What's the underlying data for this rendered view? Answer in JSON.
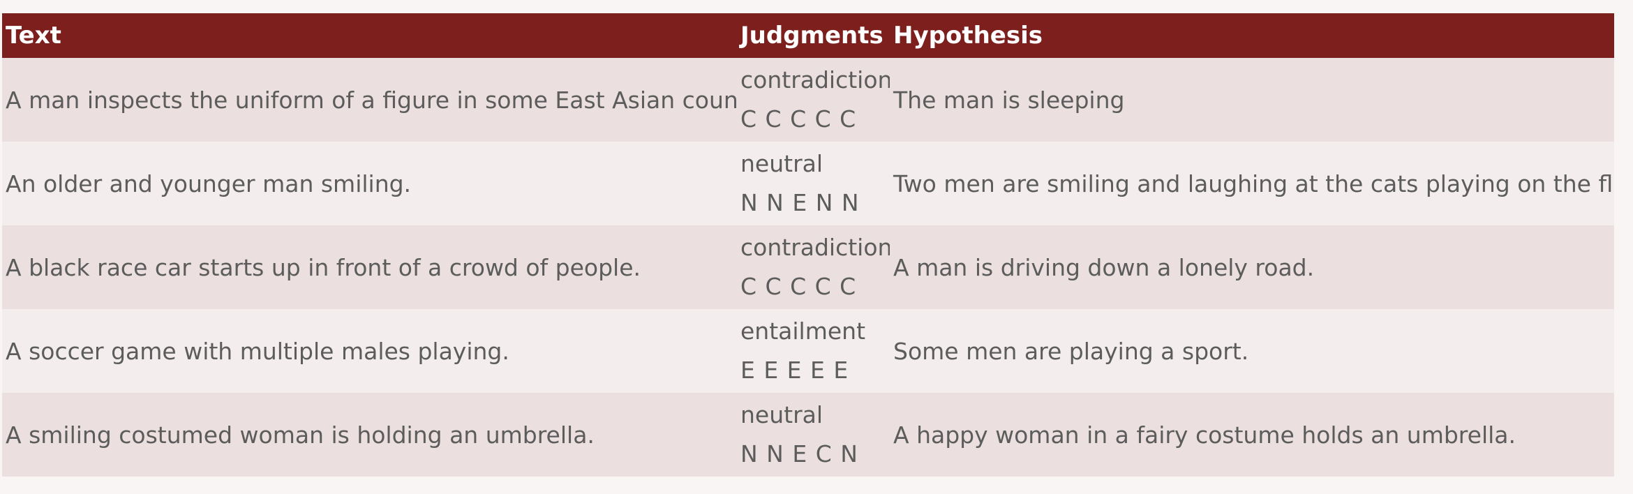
{
  "table": {
    "headers": {
      "text": "Text",
      "judgments": "Judgments",
      "hypothesis": "Hypothesis"
    },
    "rows": [
      {
        "text": "A man inspects the uniform of a figure in some East Asian country.",
        "label": "contradiction",
        "codes": "C C C C C",
        "hypothesis": "The man is sleeping"
      },
      {
        "text": "An older and younger man smiling.",
        "label": "neutral",
        "codes": "N N E N N",
        "hypothesis": "Two men are smiling and laughing at the cats playing on the floor."
      },
      {
        "text": "A black race car starts up in front of a crowd of people.",
        "label": "contradiction",
        "codes": "C C C C C",
        "hypothesis": "A man is driving down a lonely road."
      },
      {
        "text": "A soccer game with multiple males playing.",
        "label": "entailment",
        "codes": "E E E E E",
        "hypothesis": "Some men are playing a sport."
      },
      {
        "text": "A smiling costumed woman is holding an umbrella.",
        "label": "neutral",
        "codes": "N N E C N",
        "hypothesis": "A happy woman in a fairy costume holds an umbrella."
      }
    ]
  },
  "colors": {
    "header_bg": "#7d1f1c",
    "header_text": "#ffffff",
    "row_odd": "#ebdfdf",
    "row_even": "#f4eded",
    "body_text": "#5c5c5c"
  }
}
